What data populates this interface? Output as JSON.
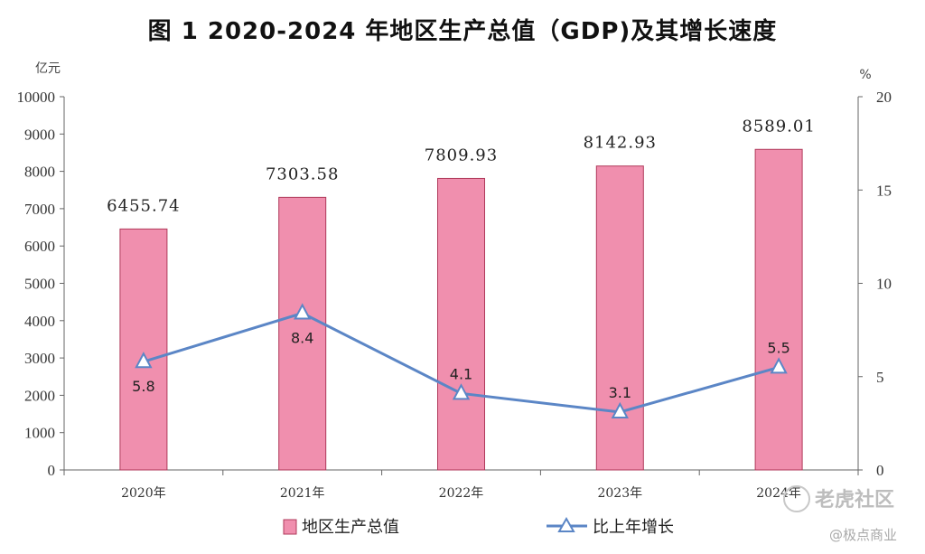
{
  "chart_data": {
    "type": "bar",
    "title": "图 1   2020-2024 年地区生产总值（GDP)及其增长速度",
    "categories": [
      "2020年",
      "2021年",
      "2022年",
      "2023年",
      "2024年"
    ],
    "series": [
      {
        "name": "地区生产总值",
        "type": "bar",
        "axis": "left",
        "values": [
          6455.74,
          7303.58,
          7809.93,
          8142.93,
          8589.01
        ],
        "labels": [
          "6455.74",
          "7303.58",
          "7809.93",
          "8142.93",
          "8589.01"
        ],
        "color": "#f08fae",
        "stroke": "#b03a5b"
      },
      {
        "name": "比上年增长",
        "type": "line",
        "axis": "right",
        "values": [
          5.8,
          8.4,
          4.1,
          3.1,
          5.5
        ],
        "labels": [
          "5.8",
          "8.4",
          "4.1",
          "3.1",
          "5.5"
        ],
        "color": "#5b86c6"
      }
    ],
    "y_left": {
      "unit": "亿元",
      "ylim": [
        0,
        10000
      ],
      "ticks": [
        "0",
        "1000",
        "2000",
        "3000",
        "4000",
        "5000",
        "6000",
        "7000",
        "8000",
        "9000",
        "10000"
      ]
    },
    "y_right": {
      "unit": "%",
      "ylim": [
        0,
        20
      ],
      "ticks": [
        "0",
        "5",
        "10",
        "15",
        "20"
      ]
    },
    "legend": {
      "placement": "bottom",
      "items": [
        {
          "label": "地区生产总值",
          "kind": "bar"
        },
        {
          "label": "比上年增长",
          "kind": "line"
        }
      ]
    },
    "grid": false
  },
  "watermark": {
    "text": "老虎社区",
    "sub": "@极点商业"
  }
}
